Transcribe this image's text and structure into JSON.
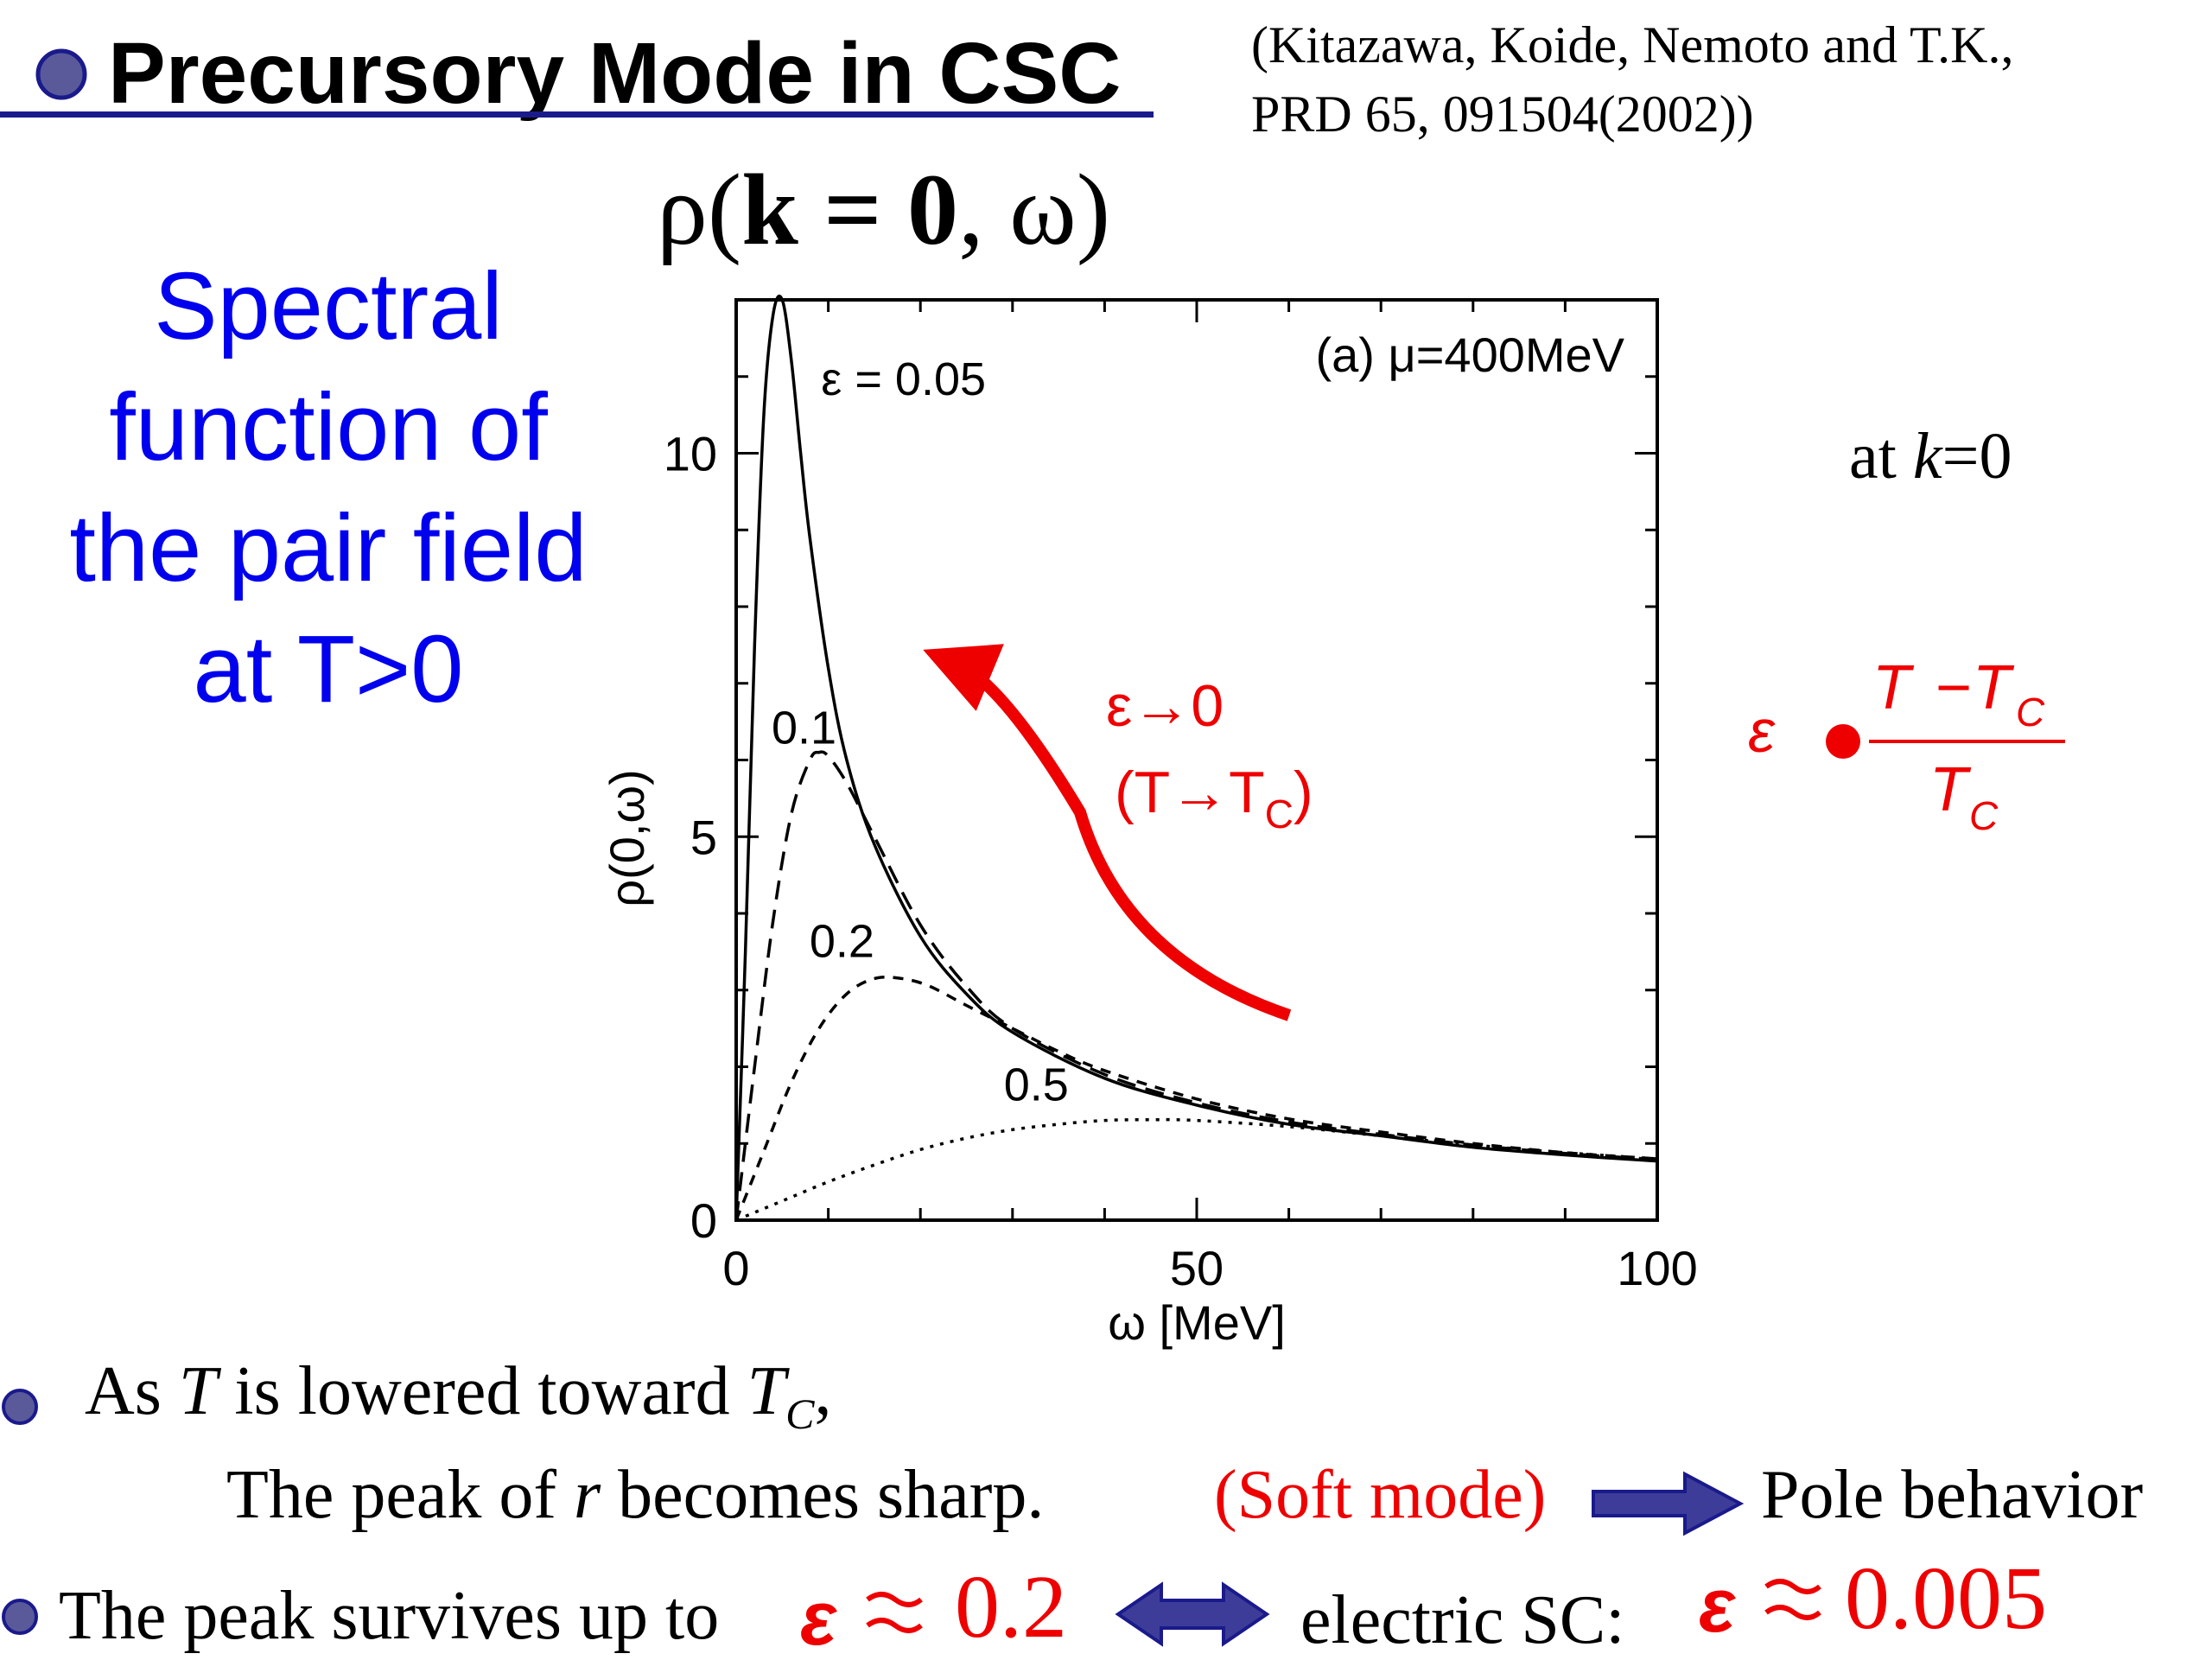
{
  "header": {
    "title": "Precursory Mode in CSC",
    "citation_line1": "(Kitazawa, Koide, Nemoto and T.K.,",
    "citation_line2": "PRD 65, 091504(2002))"
  },
  "left_heading": {
    "lines": [
      "Spectral",
      "function of",
      "the pair field",
      "at  T>0"
    ]
  },
  "plot_title": {
    "rho": "ρ(",
    "k": "k = 0",
    "rest": ", ω)"
  },
  "right_note": {
    "at_text": "at ",
    "k_text": "k",
    "eq_text": "=0"
  },
  "epsilon_definition": {
    "symbol": "ε",
    "numerator_T": "T",
    "minus": "−",
    "numerator_Tc": "T",
    "sub_c": "C",
    "denominator": "T"
  },
  "arrow_annotation": {
    "line1": "ε→0",
    "line2": "(T→T",
    "line2_sub": "C",
    "line2_close": ")"
  },
  "chart_data": {
    "type": "line",
    "annotation": "(a) μ=400MeV",
    "xlabel": "ω [MeV]",
    "ylabel": "ρ(0,ω)",
    "xlim": [
      0,
      100
    ],
    "ylim": [
      0,
      12
    ],
    "xticks": [
      "0",
      "50",
      "100"
    ],
    "yticks": [
      "0",
      "5",
      "10"
    ],
    "series": [
      {
        "name": "ε = 0.05",
        "label": "ε = 0.05",
        "style": "solid",
        "x": [
          0,
          1,
          2,
          3,
          4,
          5,
          6,
          7,
          8,
          10,
          12,
          15,
          20,
          25,
          30,
          40,
          50,
          60,
          70,
          80,
          90,
          100
        ],
        "y": [
          0,
          3.5,
          7.5,
          10.5,
          11.8,
          12.0,
          11.2,
          10.0,
          8.9,
          7.2,
          6.0,
          4.9,
          3.7,
          2.95,
          2.45,
          1.85,
          1.5,
          1.25,
          1.1,
          0.95,
          0.85,
          0.77
        ]
      },
      {
        "name": "0.1",
        "label": "0.1",
        "style": "dashed",
        "x": [
          0,
          2,
          4,
          6,
          8,
          9,
          10,
          12,
          15,
          20,
          25,
          30,
          40,
          50,
          60,
          70,
          80,
          90,
          100
        ],
        "y": [
          0,
          2.0,
          3.9,
          5.3,
          6.0,
          6.1,
          6.05,
          5.7,
          5.0,
          3.85,
          3.05,
          2.5,
          1.9,
          1.53,
          1.28,
          1.12,
          0.98,
          0.87,
          0.79
        ]
      },
      {
        "name": "0.2",
        "label": "0.2",
        "style": "dashed-short",
        "x": [
          0,
          3,
          6,
          9,
          12,
          15,
          18,
          21,
          25,
          30,
          35,
          40,
          50,
          60,
          70,
          80,
          90,
          100
        ],
        "y": [
          0,
          0.9,
          1.8,
          2.5,
          2.95,
          3.15,
          3.15,
          3.05,
          2.8,
          2.5,
          2.2,
          1.95,
          1.58,
          1.32,
          1.15,
          1.0,
          0.88,
          0.8
        ]
      },
      {
        "name": "0.5",
        "label": "0.5",
        "style": "dotted",
        "x": [
          0,
          5,
          10,
          15,
          20,
          25,
          30,
          35,
          40,
          45,
          50,
          60,
          70,
          80,
          90,
          100
        ],
        "y": [
          0,
          0.25,
          0.5,
          0.72,
          0.92,
          1.07,
          1.18,
          1.25,
          1.3,
          1.31,
          1.3,
          1.22,
          1.1,
          0.98,
          0.88,
          0.8
        ]
      }
    ]
  },
  "bullets": {
    "b1_pre": "As ",
    "b1_T": "T",
    "b1_mid": " is lowered toward ",
    "b1_Tc": "T",
    "b1_sub": "C",
    "b1_end": ",",
    "b2_pre": "The peak of ",
    "b2_r": "r",
    "b2_mid": " becomes sharp.",
    "soft_mode": "(Soft mode)",
    "pole_behavior": "Pole behavior",
    "b3_text": "The peak survives up to",
    "value_cqd": "0.2",
    "electric_sc": "electric SC",
    "colon": ":",
    "value_esc": "0.005"
  },
  "colors": {
    "accent_blue": "#1a1a8c",
    "heading_blue": "#0000ee",
    "annotation_red": "#ee0000",
    "bullet_fill": "#5a5a9a"
  }
}
